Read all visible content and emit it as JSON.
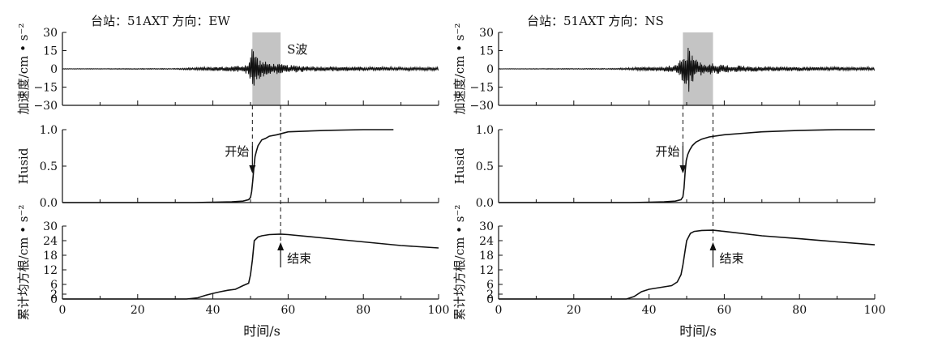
{
  "chart_data": [
    {
      "type": "line",
      "station_title": "台站：51AXT 方向：EW",
      "xlabel": "时间/s",
      "xlim": [
        0,
        100
      ],
      "xticks": [
        "0",
        "20",
        "40",
        "60",
        "80",
        "100"
      ],
      "start_time": 50.5,
      "end_time": 58.0,
      "panels": [
        {
          "id": "acc",
          "ylabel": "加速度/cm • s⁻²",
          "ylim": [
            -30,
            30
          ],
          "yticks": [
            "30",
            "15",
            "0",
            "−15",
            "−30"
          ],
          "shaded_window": [
            50.5,
            58.0
          ],
          "annotation": "S波",
          "envelope": {
            "x": [
              0,
              30,
              36,
              40,
              44,
              48,
              49.5,
              50.5,
              51,
              52,
              53,
              54,
              55,
              56,
              58,
              60,
              63,
              67,
              72,
              80,
              90,
              100
            ],
            "amp": [
              0.2,
              0.4,
              1.2,
              1.6,
              2.0,
              3.0,
              5.0,
              20,
              18,
              9,
              7,
              6,
              5,
              4.5,
              4,
              3.2,
              2.8,
              2.2,
              2.0,
              1.7,
              1.5,
              1.3
            ]
          }
        },
        {
          "id": "husid",
          "ylabel": "Husid",
          "ylim": [
            0,
            1.0
          ],
          "yticks": [
            "0.0",
            "0.5",
            "1.0"
          ],
          "annotation": "开始",
          "series": [
            {
              "x": [
                0,
                35,
                40,
                45,
                48,
                49.5,
                50,
                50.3,
                50.6,
                50.9,
                51.2,
                51.6,
                52,
                53,
                54,
                55,
                57,
                60,
                65,
                70,
                80,
                88
              ],
              "y": [
                0,
                0,
                0.005,
                0.01,
                0.02,
                0.04,
                0.07,
                0.15,
                0.3,
                0.48,
                0.63,
                0.71,
                0.78,
                0.86,
                0.88,
                0.91,
                0.93,
                0.97,
                0.98,
                0.99,
                1.0,
                1.0
              ]
            }
          ]
        },
        {
          "id": "rms",
          "ylabel": "累计均方根/cm • s⁻²",
          "ylim": [
            0,
            30
          ],
          "yticks": [
            "0",
            "2",
            "6",
            "12",
            "18",
            "24",
            "30"
          ],
          "annotation": "结束",
          "series": [
            {
              "x": [
                0,
                33,
                36,
                38,
                40,
                42,
                44,
                46,
                48,
                49.5,
                50,
                50.5,
                51,
                52,
                53,
                55,
                58,
                60,
                70,
                80,
                90,
                100
              ],
              "y": [
                0,
                0,
                0.5,
                1.5,
                2.3,
                3,
                3.6,
                4,
                5.5,
                6.5,
                10,
                16,
                24,
                25.5,
                26,
                26.5,
                26.7,
                26.5,
                25,
                23.5,
                22,
                21
              ]
            }
          ]
        }
      ]
    },
    {
      "type": "line",
      "station_title": "台站：51AXT 方向：NS",
      "xlabel": "时间/s",
      "xlim": [
        0,
        100
      ],
      "xticks": [
        "0",
        "20",
        "40",
        "60",
        "80",
        "100"
      ],
      "start_time": 49.0,
      "end_time": 57.0,
      "panels": [
        {
          "id": "acc",
          "ylabel": "加速度/cm • s⁻²",
          "ylim": [
            -30,
            30
          ],
          "yticks": [
            "30",
            "15",
            "0",
            "−15",
            "−30"
          ],
          "shaded_window": [
            49.0,
            57.0
          ],
          "annotation": "",
          "envelope": {
            "x": [
              0,
              30,
              36,
              40,
              44,
              47,
              48.5,
              49.5,
              50.5,
              51,
              52,
              53,
              54,
              55,
              57,
              60,
              63,
              67,
              72,
              80,
              90,
              100
            ],
            "amp": [
              0.2,
              0.4,
              1.2,
              1.7,
              2.2,
              3.2,
              8,
              15,
              20,
              14,
              9,
              7,
              6,
              5,
              4.5,
              3.4,
              2.8,
              2.3,
              2.0,
              1.8,
              1.6,
              1.4
            ]
          }
        },
        {
          "id": "husid",
          "ylabel": "Husid",
          "ylim": [
            0,
            1.0
          ],
          "yticks": [
            "0.0",
            "0.5",
            "1.0"
          ],
          "annotation": "开始",
          "series": [
            {
              "x": [
                0,
                35,
                40,
                44,
                47,
                48.5,
                49,
                49.3,
                49.6,
                49.9,
                50.3,
                50.8,
                51.5,
                52.5,
                54,
                56,
                60,
                65,
                70,
                80,
                90,
                100
              ],
              "y": [
                0,
                0,
                0.005,
                0.01,
                0.02,
                0.04,
                0.08,
                0.2,
                0.42,
                0.58,
                0.66,
                0.72,
                0.78,
                0.83,
                0.87,
                0.9,
                0.93,
                0.95,
                0.97,
                0.99,
                1.0,
                1.0
              ]
            }
          ]
        },
        {
          "id": "rms",
          "ylabel": "累计均方根/cm • s⁻²",
          "ylim": [
            0,
            30
          ],
          "yticks": [
            "0",
            "2",
            "6",
            "12",
            "18",
            "24",
            "30"
          ],
          "annotation": "结束",
          "series": [
            {
              "x": [
                0,
                34,
                36,
                38,
                40,
                42,
                44,
                46,
                47.5,
                48.5,
                49,
                49.5,
                50,
                51,
                52,
                54,
                57,
                60,
                70,
                80,
                90,
                100
              ],
              "y": [
                0,
                0,
                1,
                3,
                4,
                4.5,
                5,
                5.5,
                7,
                10,
                14,
                19,
                24,
                27,
                27.8,
                28.2,
                28.3,
                27.8,
                26,
                24.8,
                23.5,
                22.3
              ]
            }
          ]
        }
      ]
    }
  ]
}
